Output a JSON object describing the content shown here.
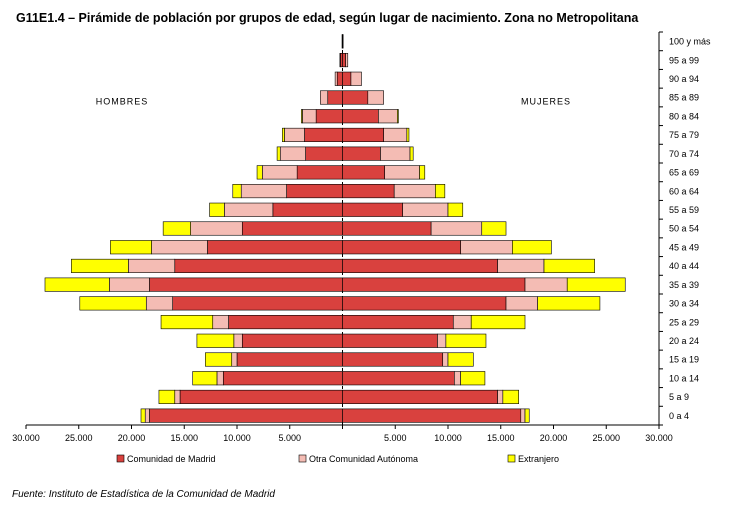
{
  "title": "G11E1.4 – Pirámide de población por grupos de edad, según lugar de nacimiento. Zona no Metropolitana",
  "source": "Fuente: Instituto de Estadística de la Comunidad de Madrid",
  "colors": {
    "comunidad": "#d9413e",
    "otra": "#f4bcb4",
    "extranjero": "#ffff00",
    "edge": "#000000"
  },
  "chart_data": {
    "type": "bar",
    "orientation": "horizontal-pyramid",
    "side_labels": {
      "left": "HOMBRES",
      "right": "MUJERES"
    },
    "xlim": [
      -30000,
      30000
    ],
    "x_ticks": [
      {
        "value": -30000,
        "label": "30.000"
      },
      {
        "value": -25000,
        "label": "25.000"
      },
      {
        "value": -20000,
        "label": "20.000"
      },
      {
        "value": -15000,
        "label": "15.000"
      },
      {
        "value": -10000,
        "label": "10.000"
      },
      {
        "value": -5000,
        "label": "5.000"
      },
      {
        "value": 0,
        "label": ""
      },
      {
        "value": 5000,
        "label": "5.000"
      },
      {
        "value": 10000,
        "label": "10.000"
      },
      {
        "value": 15000,
        "label": "15.000"
      },
      {
        "value": 20000,
        "label": "20.000"
      },
      {
        "value": 25000,
        "label": "25.000"
      },
      {
        "value": 30000,
        "label": "30.000"
      }
    ],
    "categories": [
      "0 a 4",
      "5 a 9",
      "10 a 14",
      "15 a 19",
      "20 a 24",
      "25 a 29",
      "30 a 34",
      "35 a 39",
      "40 a 44",
      "45 a 49",
      "50 a 54",
      "55 a 59",
      "60 a 64",
      "65 a 69",
      "70 a 74",
      "75 a 79",
      "80 a 84",
      "85 a 89",
      "90 a 94",
      "95 a 99",
      "100 y más"
    ],
    "series": [
      {
        "name": "Comunidad de Madrid",
        "hombres": [
          18300,
          15400,
          11300,
          10000,
          9500,
          10800,
          16100,
          18300,
          15900,
          12800,
          9500,
          6600,
          5300,
          4300,
          3500,
          3600,
          2500,
          1400,
          500,
          200,
          30
        ],
        "mujeres": [
          16900,
          14700,
          10600,
          9500,
          9000,
          10500,
          15500,
          17300,
          14700,
          11200,
          8400,
          5700,
          4900,
          4000,
          3600,
          3900,
          3400,
          2400,
          800,
          300,
          50
        ]
      },
      {
        "name": "Otra Comunidad Autónoma",
        "hombres": [
          400,
          500,
          600,
          500,
          800,
          1500,
          2500,
          3800,
          4400,
          5300,
          4900,
          4600,
          4300,
          3300,
          2400,
          1900,
          1300,
          700,
          200,
          50,
          10
        ],
        "mujeres": [
          400,
          500,
          600,
          500,
          800,
          1700,
          3000,
          4000,
          4400,
          4900,
          4800,
          4300,
          3900,
          3300,
          2800,
          2200,
          1800,
          1500,
          1000,
          200,
          10
        ]
      },
      {
        "name": "Extranjero",
        "hombres": [
          400,
          1500,
          2300,
          2500,
          3500,
          4900,
          6300,
          6100,
          5400,
          3900,
          2600,
          1400,
          800,
          500,
          300,
          200,
          100,
          0,
          0,
          0,
          0
        ],
        "mujeres": [
          400,
          1500,
          2300,
          2400,
          3800,
          5100,
          5900,
          5500,
          4800,
          3700,
          2300,
          1400,
          900,
          500,
          300,
          200,
          100,
          0,
          0,
          0,
          0
        ]
      }
    ]
  }
}
